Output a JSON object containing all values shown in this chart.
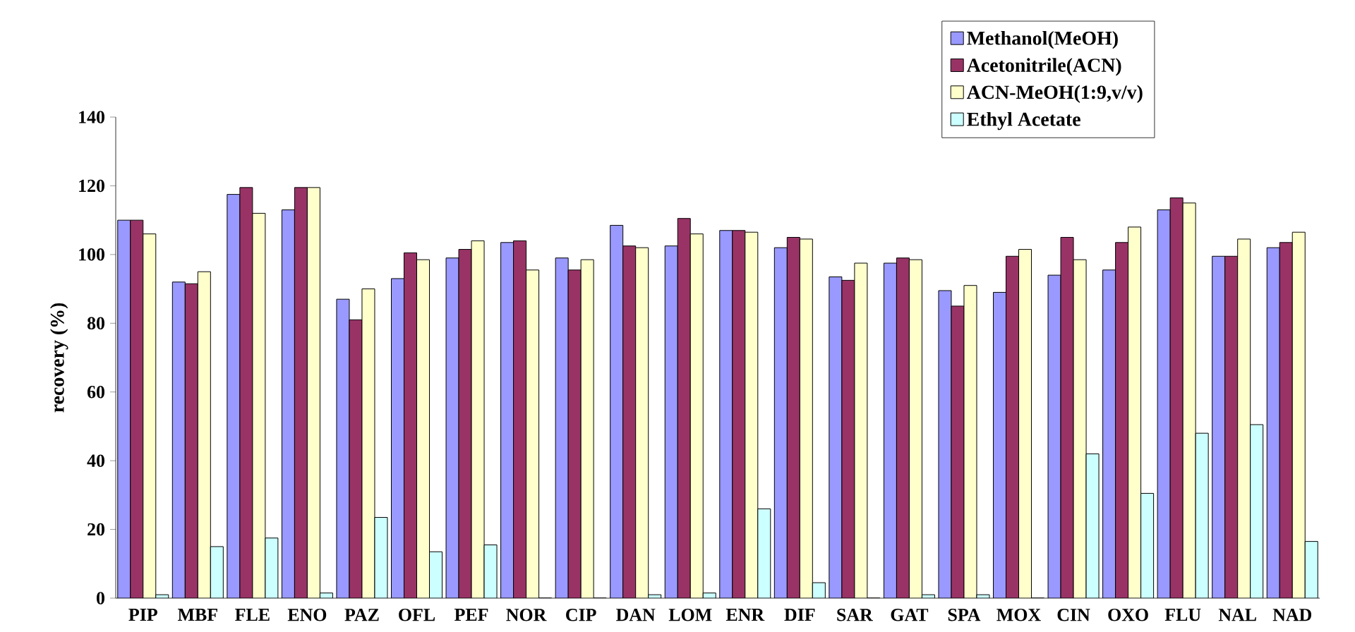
{
  "chart_data": {
    "type": "bar",
    "ylabel": "recovery (%)",
    "categories": [
      "PIP",
      "MBF",
      "FLE",
      "ENO",
      "PAZ",
      "OFL",
      "PEF",
      "NOR",
      "CIP",
      "DAN",
      "LOM",
      "ENR",
      "DIF",
      "SAR",
      "GAT",
      "SPA",
      "MOX",
      "CIN",
      "OXO",
      "FLU",
      "NAL",
      "NAD"
    ],
    "series": [
      {
        "name": "Methanol(MeOH)",
        "color": "#9999ff",
        "values": [
          110,
          92,
          117.5,
          113,
          87,
          93,
          99,
          103.5,
          99,
          108.5,
          102.5,
          107,
          102,
          93.5,
          97.5,
          89.5,
          89,
          94,
          95.5,
          113,
          99.5,
          102
        ]
      },
      {
        "name": "Acetonitrile(ACN)",
        "color": "#993366",
        "values": [
          110,
          91.5,
          119.5,
          119.5,
          81,
          100.5,
          101.5,
          104,
          95.5,
          102.5,
          110.5,
          107,
          105,
          92.5,
          99,
          85,
          99.5,
          105,
          103.5,
          116.5,
          99.5,
          103.5
        ]
      },
      {
        "name": "ACN-MeOH(1:9,v/v)",
        "color": "#ffffcc",
        "values": [
          106,
          95,
          112,
          119.5,
          90,
          98.5,
          104,
          95.5,
          98.5,
          102,
          106,
          106.5,
          104.5,
          97.5,
          98.5,
          91,
          101.5,
          98.5,
          108,
          115,
          104.5,
          106.5
        ]
      },
      {
        "name": "Ethyl Acetate",
        "color": "#ccffff",
        "values": [
          1,
          15,
          17.5,
          1.5,
          23.5,
          13.5,
          15.5,
          0,
          0,
          1,
          1.5,
          26,
          4.5,
          0,
          1,
          1,
          0,
          42,
          30.5,
          48,
          50.5,
          16.5
        ]
      }
    ],
    "ylim": [
      0,
      140
    ],
    "yticks": [
      0,
      20,
      40,
      60,
      80,
      100,
      120,
      140
    ],
    "legend": "top right"
  }
}
